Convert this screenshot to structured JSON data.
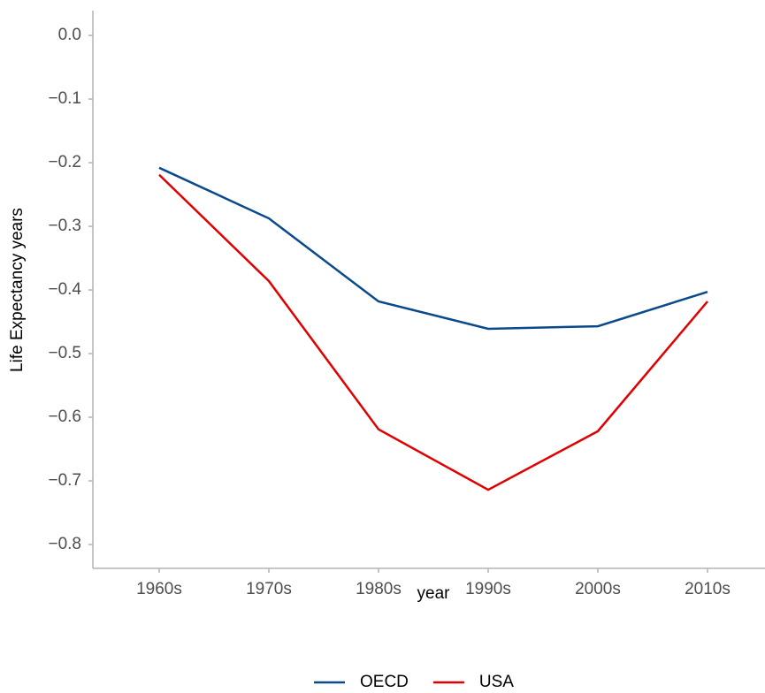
{
  "chart_data": {
    "type": "line",
    "categories": [
      "1960s",
      "1970s",
      "1980s",
      "1990s",
      "2000s",
      "2010s"
    ],
    "series": [
      {
        "name": "OECD",
        "color": "#0b4a8a",
        "values": [
          -0.208,
          -0.2875,
          -0.418,
          -0.461,
          -0.457,
          -0.403
        ]
      },
      {
        "name": "USA",
        "color": "#e00000",
        "values": [
          -0.219,
          -0.386,
          -0.619,
          -0.714,
          -0.622,
          -0.418
        ]
      }
    ],
    "x_label": "year",
    "y_label": "Life Expectancy years",
    "ylim": [
      -0.8375,
      0.039
    ],
    "yticks": [
      {
        "value": 0,
        "label": "0.0"
      },
      {
        "value": -0.1,
        "label": "−0.1"
      },
      {
        "value": -0.2,
        "label": "−0.2"
      },
      {
        "value": -0.3,
        "label": "−0.3"
      },
      {
        "value": -0.4,
        "label": "−0.4"
      },
      {
        "value": -0.5,
        "label": "−0.5"
      },
      {
        "value": -0.6,
        "label": "−0.6"
      },
      {
        "value": -0.7,
        "label": "−0.7"
      },
      {
        "value": -0.8,
        "label": "−0.8"
      }
    ],
    "legend": "bottom"
  }
}
